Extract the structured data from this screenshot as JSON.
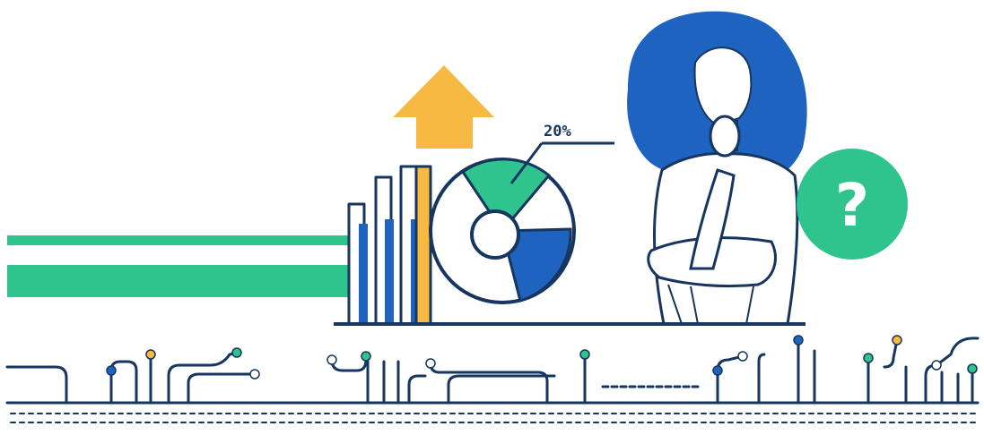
{
  "illustration": {
    "pie_percent_label": "20%",
    "question_symbol": "?",
    "colors": {
      "ink": "#16355f",
      "blue": "#1f63c0",
      "green": "#2fc48d",
      "orange": "#f6b942",
      "background": "#ffffff"
    },
    "icons": [
      "up-arrow-icon",
      "bar-chart-icon",
      "pie-chart-icon",
      "thinking-woman-figure",
      "question-bubble-icon",
      "circuit-trace-decoration"
    ]
  }
}
